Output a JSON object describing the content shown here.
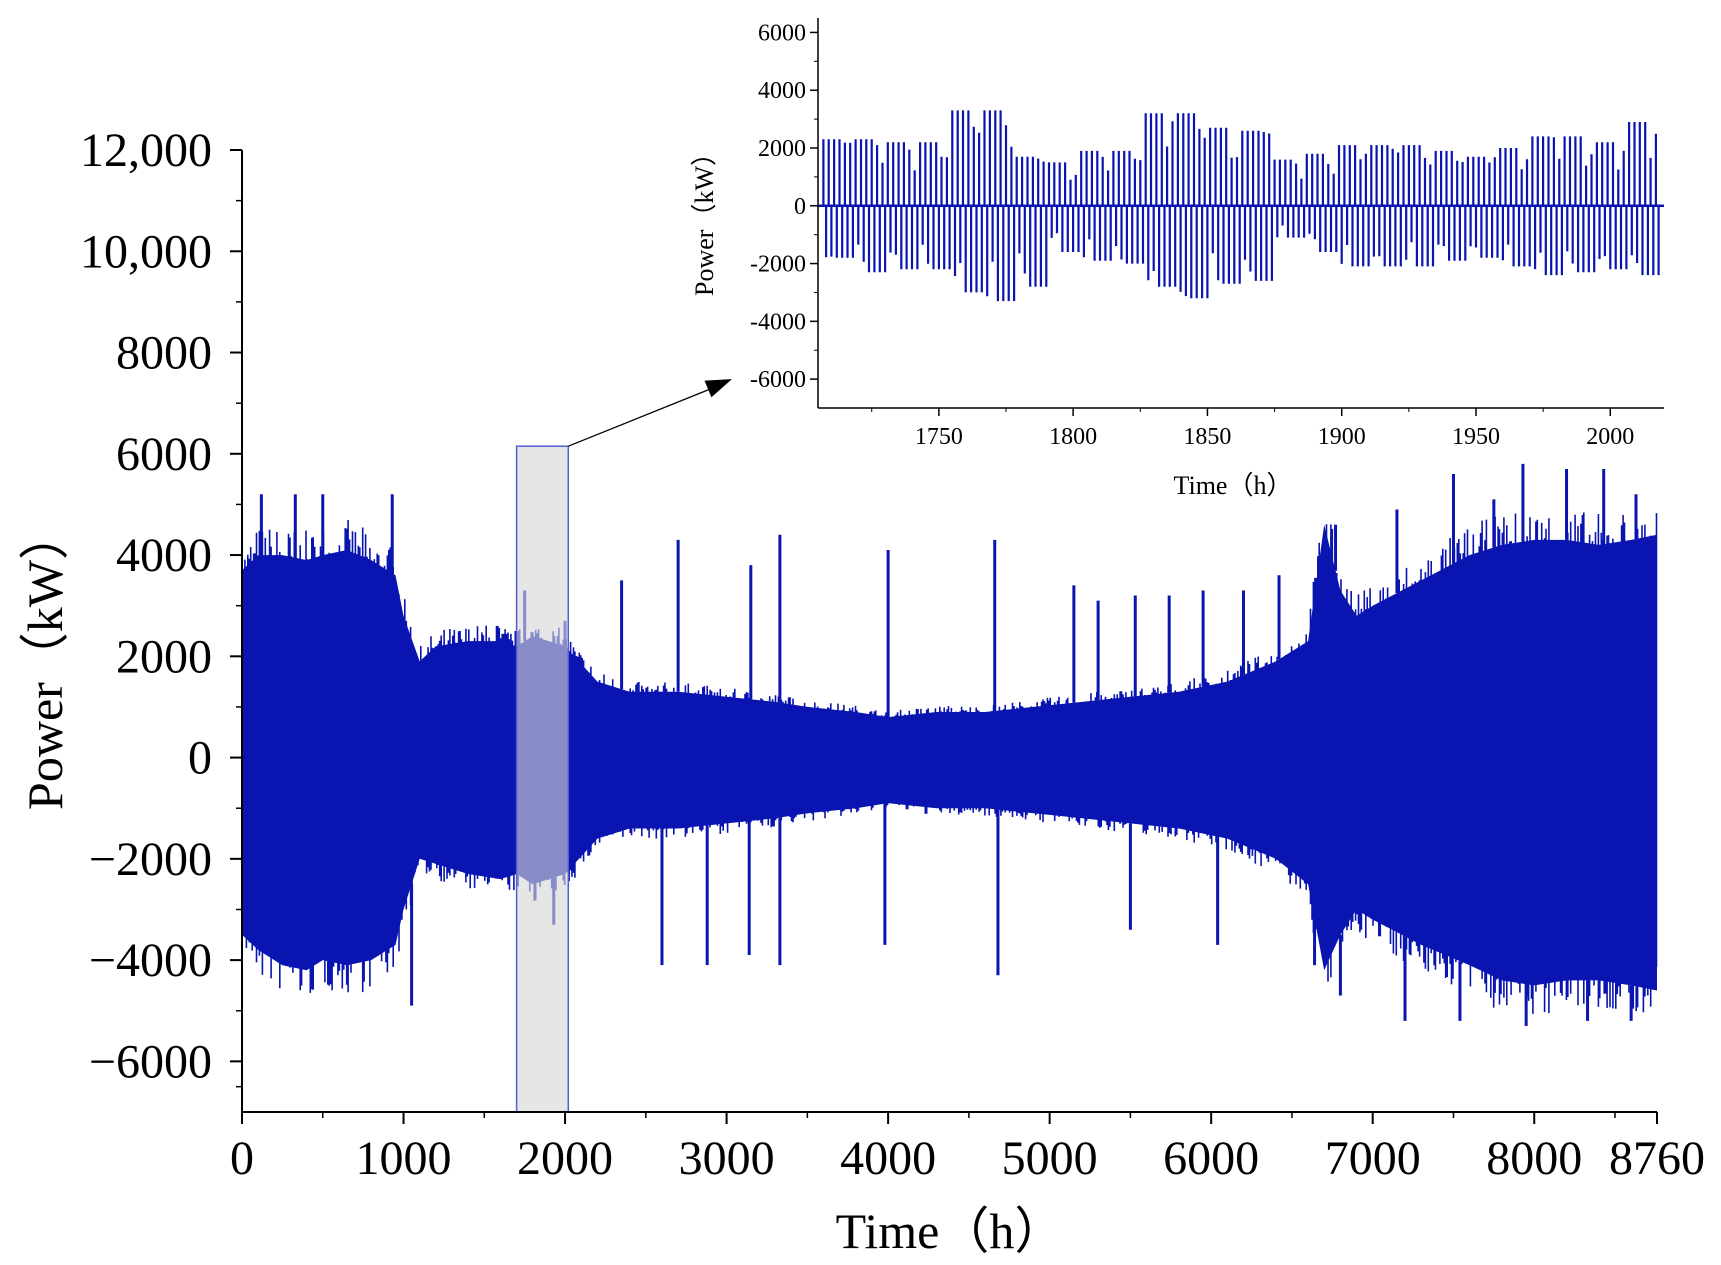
{
  "chart_data": [
    {
      "type": "line",
      "title": "",
      "xlabel": "Time（h）",
      "ylabel": "Power（kW）",
      "xlim": [
        0,
        8760
      ],
      "ylim": [
        -7000,
        12000
      ],
      "xticks": [
        0,
        1000,
        2000,
        3000,
        4000,
        5000,
        6000,
        7000,
        8000,
        8760
      ],
      "xtick_labels": [
        "0",
        "1000",
        "2000",
        "3000",
        "4000",
        "5000",
        "6000",
        "7000",
        "8000",
        "8760"
      ],
      "yticks": [
        -6000,
        -4000,
        -2000,
        0,
        2000,
        4000,
        6000,
        8000,
        10000,
        12000
      ],
      "ytick_labels": [
        "−6000",
        "−4000",
        "−2000",
        "0",
        "2000",
        "4000",
        "6000",
        "8000",
        "10,000",
        "12,000"
      ],
      "series": [
        {
          "color": "#0a14b0",
          "style": "hourly oscillating power, upper and lower envelope",
          "envelope_x": [
            0,
            100,
            250,
            400,
            500,
            650,
            800,
            950,
            1000,
            1100,
            1200,
            1400,
            1600,
            1700,
            1800,
            1900,
            2000,
            2200,
            2400,
            2700,
            3000,
            3300,
            3500,
            3800,
            4000,
            4300,
            4600,
            4900,
            5200,
            5500,
            5800,
            6100,
            6400,
            6600,
            6700,
            6800,
            6900,
            7000,
            7300,
            7600,
            7800,
            8000,
            8200,
            8400,
            8600,
            8760
          ],
          "upper": [
            3700,
            4000,
            4000,
            3900,
            4000,
            4100,
            3900,
            3600,
            2800,
            1900,
            2200,
            2300,
            2300,
            2200,
            2400,
            2300,
            2200,
            1500,
            1300,
            1300,
            1200,
            1100,
            1000,
            900,
            800,
            900,
            900,
            1000,
            1100,
            1200,
            1300,
            1500,
            1900,
            2300,
            4600,
            3300,
            2800,
            3000,
            3500,
            4000,
            4200,
            4300,
            4300,
            4200,
            4300,
            4400
          ],
          "lower": [
            -3500,
            -3800,
            -4100,
            -4200,
            -4000,
            -4100,
            -4000,
            -3700,
            -3000,
            -2000,
            -2100,
            -2300,
            -2400,
            -2300,
            -2500,
            -2400,
            -2300,
            -1600,
            -1400,
            -1400,
            -1300,
            -1200,
            -1100,
            -1000,
            -900,
            -1000,
            -1000,
            -1100,
            -1200,
            -1300,
            -1400,
            -1600,
            -2000,
            -2500,
            -4200,
            -3500,
            -3000,
            -3200,
            -3700,
            -4100,
            -4400,
            -4500,
            -4400,
            -4400,
            -4500,
            -4600
          ],
          "spikes": [
            [
              120,
              5200
            ],
            [
              330,
              5200
            ],
            [
              500,
              5200
            ],
            [
              930,
              5200
            ],
            [
              1580,
              2600
            ],
            [
              1750,
              3300
            ],
            [
              2000,
              2700
            ],
            [
              2350,
              3500
            ],
            [
              2700,
              4300
            ],
            [
              3150,
              3800
            ],
            [
              3330,
              4400
            ],
            [
              4000,
              4100
            ],
            [
              4660,
              4300
            ],
            [
              5150,
              3400
            ],
            [
              5300,
              3100
            ],
            [
              5530,
              3200
            ],
            [
              5740,
              3200
            ],
            [
              5950,
              3300
            ],
            [
              6200,
              3300
            ],
            [
              6420,
              3600
            ],
            [
              6770,
              4600
            ],
            [
              7150,
              4900
            ],
            [
              7500,
              5600
            ],
            [
              7750,
              5100
            ],
            [
              7930,
              5800
            ],
            [
              8200,
              5700
            ],
            [
              8430,
              5700
            ],
            [
              8630,
              5200
            ],
            [
              1050,
              -4900
            ],
            [
              1930,
              -3300
            ],
            [
              2600,
              -4100
            ],
            [
              2880,
              -4100
            ],
            [
              3140,
              -3900
            ],
            [
              3330,
              -4100
            ],
            [
              3980,
              -3700
            ],
            [
              4680,
              -4300
            ],
            [
              5500,
              -3400
            ],
            [
              6040,
              -3700
            ],
            [
              6640,
              -4100
            ],
            [
              6800,
              -4700
            ],
            [
              7200,
              -5200
            ],
            [
              7540,
              -5200
            ],
            [
              7950,
              -5300
            ],
            [
              8330,
              -5200
            ],
            [
              8600,
              -5200
            ]
          ]
        }
      ],
      "highlight": {
        "x_range": [
          1700,
          2020
        ],
        "y_range": [
          -7000,
          6150
        ],
        "color": "#d6d6d6",
        "edge_color": "#5060d0"
      }
    },
    {
      "type": "line",
      "title": "",
      "xlabel": "Time（h）",
      "ylabel": "Power（kW）",
      "xlim": [
        1705,
        2020
      ],
      "ylim": [
        -7000,
        6500
      ],
      "xticks": [
        1750,
        1800,
        1850,
        1900,
        1950,
        2000
      ],
      "xtick_labels": [
        "1750",
        "1800",
        "1850",
        "1900",
        "1950",
        "2000"
      ],
      "yticks": [
        -6000,
        -4000,
        -2000,
        0,
        2000,
        4000,
        6000
      ],
      "ytick_labels": [
        "-6000",
        "-4000",
        "-2000",
        "0",
        "2000",
        "4000",
        "6000"
      ],
      "series": [
        {
          "color": "#0a14b0",
          "style": "vertical hourly bars",
          "day_x": [
            1707,
            1719,
            1731,
            1743,
            1755,
            1767,
            1779,
            1791,
            1803,
            1815,
            1827,
            1839,
            1851,
            1863,
            1875,
            1887,
            1899,
            1911,
            1923,
            1935,
            1947,
            1959,
            1971,
            1983,
            1995,
            2007
          ],
          "day_high": [
            2300,
            2300,
            2200,
            2200,
            3300,
            3300,
            1700,
            1500,
            1900,
            1900,
            3200,
            3200,
            2700,
            2600,
            1600,
            1800,
            2100,
            2100,
            2100,
            1900,
            1700,
            2000,
            2400,
            2400,
            2200,
            2900
          ],
          "day_low": [
            -1800,
            -2300,
            -2200,
            -2200,
            -3000,
            -3300,
            -2800,
            -1600,
            -1900,
            -2000,
            -2800,
            -3200,
            -2700,
            -2600,
            -1100,
            -1600,
            -2100,
            -2100,
            -2100,
            -1900,
            -1800,
            -2100,
            -2400,
            -2300,
            -2200,
            -2400
          ]
        }
      ]
    }
  ]
}
